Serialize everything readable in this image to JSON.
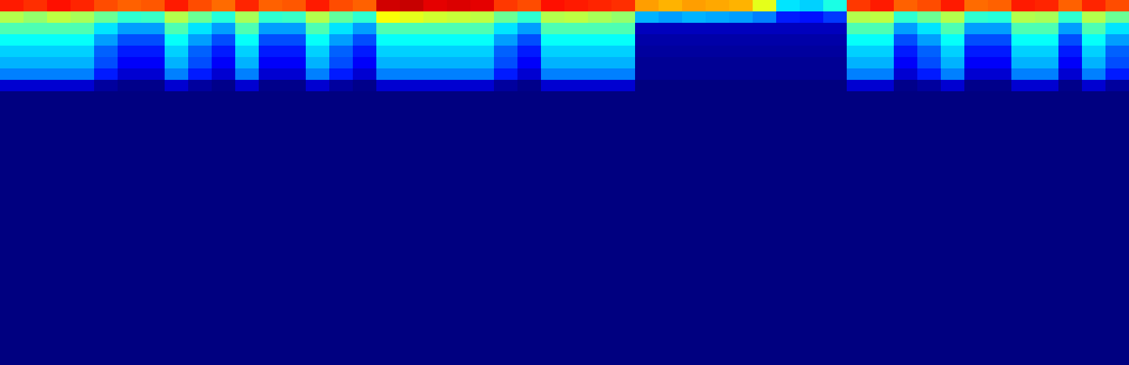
{
  "chart_data": {
    "type": "heatmap",
    "tick_labels": false,
    "xlim": [
      0,
      48
    ],
    "ylim": [
      0,
      32
    ],
    "color_range": [
      0,
      1
    ],
    "values": [
      [
        0.85,
        0.83,
        0.86,
        0.84,
        0.8,
        0.78,
        0.79,
        0.85,
        0.8,
        0.77,
        0.84,
        0.78,
        0.79,
        0.85,
        0.8,
        0.78,
        0.92,
        0.93,
        0.9,
        0.91,
        0.9,
        0.82,
        0.8,
        0.86,
        0.85,
        0.84,
        0.83,
        0.72,
        0.7,
        0.72,
        0.71,
        0.7,
        0.6,
        0.35,
        0.33,
        0.4,
        0.82,
        0.85,
        0.78,
        0.8,
        0.85,
        0.77,
        0.78,
        0.85,
        0.84,
        0.78,
        0.84,
        0.8
      ],
      [
        0.55,
        0.52,
        0.56,
        0.54,
        0.48,
        0.42,
        0.43,
        0.55,
        0.48,
        0.41,
        0.54,
        0.42,
        0.43,
        0.55,
        0.47,
        0.42,
        0.62,
        0.6,
        0.58,
        0.57,
        0.56,
        0.48,
        0.42,
        0.55,
        0.56,
        0.54,
        0.52,
        0.3,
        0.28,
        0.3,
        0.29,
        0.28,
        0.25,
        0.15,
        0.14,
        0.18,
        0.55,
        0.56,
        0.42,
        0.48,
        0.55,
        0.42,
        0.41,
        0.55,
        0.54,
        0.42,
        0.55,
        0.48
      ],
      [
        0.45,
        0.45,
        0.45,
        0.45,
        0.35,
        0.28,
        0.28,
        0.45,
        0.35,
        0.28,
        0.45,
        0.28,
        0.28,
        0.45,
        0.35,
        0.28,
        0.45,
        0.45,
        0.45,
        0.45,
        0.45,
        0.35,
        0.28,
        0.45,
        0.45,
        0.45,
        0.45,
        0.06,
        0.06,
        0.06,
        0.06,
        0.06,
        0.06,
        0.06,
        0.06,
        0.06,
        0.45,
        0.45,
        0.28,
        0.35,
        0.45,
        0.28,
        0.28,
        0.45,
        0.45,
        0.28,
        0.45,
        0.35
      ],
      [
        0.38,
        0.38,
        0.38,
        0.38,
        0.28,
        0.2,
        0.2,
        0.38,
        0.28,
        0.2,
        0.38,
        0.2,
        0.2,
        0.38,
        0.28,
        0.2,
        0.38,
        0.38,
        0.38,
        0.38,
        0.38,
        0.28,
        0.2,
        0.38,
        0.38,
        0.38,
        0.38,
        0.04,
        0.04,
        0.04,
        0.04,
        0.04,
        0.04,
        0.04,
        0.04,
        0.04,
        0.38,
        0.38,
        0.2,
        0.28,
        0.38,
        0.2,
        0.2,
        0.38,
        0.38,
        0.2,
        0.38,
        0.28
      ],
      [
        0.33,
        0.33,
        0.33,
        0.33,
        0.22,
        0.15,
        0.15,
        0.33,
        0.22,
        0.15,
        0.33,
        0.15,
        0.15,
        0.33,
        0.22,
        0.15,
        0.33,
        0.33,
        0.33,
        0.33,
        0.33,
        0.22,
        0.15,
        0.33,
        0.33,
        0.33,
        0.33,
        0.03,
        0.03,
        0.03,
        0.03,
        0.03,
        0.03,
        0.03,
        0.03,
        0.03,
        0.33,
        0.33,
        0.15,
        0.22,
        0.33,
        0.15,
        0.15,
        0.33,
        0.33,
        0.15,
        0.33,
        0.22
      ],
      [
        0.3,
        0.3,
        0.3,
        0.3,
        0.2,
        0.12,
        0.12,
        0.3,
        0.2,
        0.12,
        0.3,
        0.12,
        0.12,
        0.3,
        0.2,
        0.12,
        0.3,
        0.3,
        0.3,
        0.3,
        0.3,
        0.2,
        0.12,
        0.3,
        0.3,
        0.3,
        0.3,
        0.02,
        0.02,
        0.02,
        0.02,
        0.02,
        0.02,
        0.02,
        0.02,
        0.02,
        0.3,
        0.3,
        0.12,
        0.2,
        0.3,
        0.12,
        0.12,
        0.3,
        0.3,
        0.12,
        0.3,
        0.2
      ],
      [
        0.25,
        0.25,
        0.25,
        0.25,
        0.15,
        0.08,
        0.08,
        0.25,
        0.15,
        0.08,
        0.25,
        0.08,
        0.08,
        0.25,
        0.15,
        0.08,
        0.25,
        0.25,
        0.25,
        0.25,
        0.25,
        0.15,
        0.08,
        0.25,
        0.25,
        0.25,
        0.25,
        0.02,
        0.02,
        0.02,
        0.02,
        0.02,
        0.02,
        0.02,
        0.02,
        0.02,
        0.25,
        0.25,
        0.08,
        0.15,
        0.25,
        0.08,
        0.08,
        0.25,
        0.25,
        0.08,
        0.25,
        0.15
      ],
      [
        0.08,
        0.08,
        0.08,
        0.08,
        0.03,
        0.01,
        0.01,
        0.08,
        0.03,
        0.01,
        0.08,
        0.01,
        0.01,
        0.08,
        0.03,
        0.01,
        0.08,
        0.08,
        0.08,
        0.08,
        0.08,
        0.03,
        0.01,
        0.08,
        0.08,
        0.08,
        0.08,
        0,
        0,
        0,
        0,
        0,
        0,
        0,
        0,
        0,
        0.08,
        0.08,
        0.01,
        0.03,
        0.08,
        0.01,
        0.01,
        0.08,
        0.08,
        0.01,
        0.08,
        0.03
      ],
      [
        0,
        0,
        0,
        0,
        0,
        0,
        0,
        0,
        0,
        0,
        0,
        0,
        0,
        0,
        0,
        0,
        0,
        0,
        0,
        0,
        0,
        0,
        0,
        0,
        0,
        0,
        0,
        0,
        0,
        0,
        0,
        0,
        0,
        0,
        0,
        0,
        0,
        0,
        0,
        0,
        0,
        0,
        0,
        0,
        0,
        0,
        0,
        0
      ],
      [
        0,
        0,
        0,
        0,
        0,
        0,
        0,
        0,
        0,
        0,
        0,
        0,
        0,
        0,
        0,
        0,
        0,
        0,
        0,
        0,
        0,
        0,
        0,
        0,
        0,
        0,
        0,
        0,
        0,
        0,
        0,
        0,
        0,
        0,
        0,
        0,
        0,
        0,
        0,
        0,
        0,
        0,
        0,
        0,
        0,
        0,
        0,
        0
      ],
      [
        0,
        0,
        0,
        0,
        0,
        0,
        0,
        0,
        0,
        0,
        0,
        0,
        0,
        0,
        0,
        0,
        0,
        0,
        0,
        0,
        0,
        0,
        0,
        0,
        0,
        0,
        0,
        0,
        0,
        0,
        0,
        0,
        0,
        0,
        0,
        0,
        0,
        0,
        0,
        0,
        0,
        0,
        0,
        0,
        0,
        0,
        0,
        0
      ],
      [
        0,
        0,
        0,
        0,
        0,
        0,
        0,
        0,
        0,
        0,
        0,
        0,
        0,
        0,
        0,
        0,
        0,
        0,
        0,
        0,
        0,
        0,
        0,
        0,
        0,
        0,
        0,
        0,
        0,
        0,
        0,
        0,
        0,
        0,
        0,
        0,
        0,
        0,
        0,
        0,
        0,
        0,
        0,
        0,
        0,
        0,
        0,
        0
      ],
      [
        0,
        0,
        0,
        0,
        0,
        0,
        0,
        0,
        0,
        0,
        0,
        0,
        0,
        0,
        0,
        0,
        0,
        0,
        0,
        0,
        0,
        0,
        0,
        0,
        0,
        0,
        0,
        0,
        0,
        0,
        0,
        0,
        0,
        0,
        0,
        0,
        0,
        0,
        0,
        0,
        0,
        0,
        0,
        0,
        0,
        0,
        0,
        0
      ],
      [
        0,
        0,
        0,
        0,
        0,
        0,
        0,
        0,
        0,
        0,
        0,
        0,
        0,
        0,
        0,
        0,
        0,
        0,
        0,
        0,
        0,
        0,
        0,
        0,
        0,
        0,
        0,
        0,
        0,
        0,
        0,
        0,
        0,
        0,
        0,
        0,
        0,
        0,
        0,
        0,
        0,
        0,
        0,
        0,
        0,
        0,
        0,
        0
      ],
      [
        0,
        0,
        0,
        0,
        0,
        0,
        0,
        0,
        0,
        0,
        0,
        0,
        0,
        0,
        0,
        0,
        0,
        0,
        0,
        0,
        0,
        0,
        0,
        0,
        0,
        0,
        0,
        0,
        0,
        0,
        0,
        0,
        0,
        0,
        0,
        0,
        0,
        0,
        0,
        0,
        0,
        0,
        0,
        0,
        0,
        0,
        0,
        0
      ],
      [
        0,
        0,
        0,
        0,
        0,
        0,
        0,
        0,
        0,
        0,
        0,
        0,
        0,
        0,
        0,
        0,
        0,
        0,
        0,
        0,
        0,
        0,
        0,
        0,
        0,
        0,
        0,
        0,
        0,
        0,
        0,
        0,
        0,
        0,
        0,
        0,
        0,
        0,
        0,
        0,
        0,
        0,
        0,
        0,
        0,
        0,
        0,
        0
      ],
      [
        0,
        0,
        0,
        0,
        0,
        0,
        0,
        0,
        0,
        0,
        0,
        0,
        0,
        0,
        0,
        0,
        0,
        0,
        0,
        0,
        0,
        0,
        0,
        0,
        0,
        0,
        0,
        0,
        0,
        0,
        0,
        0,
        0,
        0,
        0,
        0,
        0,
        0,
        0,
        0,
        0,
        0,
        0,
        0,
        0,
        0,
        0,
        0
      ],
      [
        0,
        0,
        0,
        0,
        0,
        0,
        0,
        0,
        0,
        0,
        0,
        0,
        0,
        0,
        0,
        0,
        0,
        0,
        0,
        0,
        0,
        0,
        0,
        0,
        0,
        0,
        0,
        0,
        0,
        0,
        0,
        0,
        0,
        0,
        0,
        0,
        0,
        0,
        0,
        0,
        0,
        0,
        0,
        0,
        0,
        0,
        0,
        0
      ],
      [
        0,
        0,
        0,
        0,
        0,
        0,
        0,
        0,
        0,
        0,
        0,
        0,
        0,
        0,
        0,
        0,
        0,
        0,
        0,
        0,
        0,
        0,
        0,
        0,
        0,
        0,
        0,
        0,
        0,
        0,
        0,
        0,
        0,
        0,
        0,
        0,
        0,
        0,
        0,
        0,
        0,
        0,
        0,
        0,
        0,
        0,
        0,
        0
      ],
      [
        0,
        0,
        0,
        0,
        0,
        0,
        0,
        0,
        0,
        0,
        0,
        0,
        0,
        0,
        0,
        0,
        0,
        0,
        0,
        0,
        0,
        0,
        0,
        0,
        0,
        0,
        0,
        0,
        0,
        0,
        0,
        0,
        0,
        0,
        0,
        0,
        0,
        0,
        0,
        0,
        0,
        0,
        0,
        0,
        0,
        0,
        0,
        0
      ],
      [
        0,
        0,
        0,
        0,
        0,
        0,
        0,
        0,
        0,
        0,
        0,
        0,
        0,
        0,
        0,
        0,
        0,
        0,
        0,
        0,
        0,
        0,
        0,
        0,
        0,
        0,
        0,
        0,
        0,
        0,
        0,
        0,
        0,
        0,
        0,
        0,
        0,
        0,
        0,
        0,
        0,
        0,
        0,
        0,
        0,
        0,
        0,
        0
      ],
      [
        0,
        0,
        0,
        0,
        0,
        0,
        0,
        0,
        0,
        0,
        0,
        0,
        0,
        0,
        0,
        0,
        0,
        0,
        0,
        0,
        0,
        0,
        0,
        0,
        0,
        0,
        0,
        0,
        0,
        0,
        0,
        0,
        0,
        0,
        0,
        0,
        0,
        0,
        0,
        0,
        0,
        0,
        0,
        0,
        0,
        0,
        0,
        0
      ],
      [
        0,
        0,
        0,
        0,
        0,
        0,
        0,
        0,
        0,
        0,
        0,
        0,
        0,
        0,
        0,
        0,
        0,
        0,
        0,
        0,
        0,
        0,
        0,
        0,
        0,
        0,
        0,
        0,
        0,
        0,
        0,
        0,
        0,
        0,
        0,
        0,
        0,
        0,
        0,
        0,
        0,
        0,
        0,
        0,
        0,
        0,
        0,
        0
      ],
      [
        0,
        0,
        0,
        0,
        0,
        0,
        0,
        0,
        0,
        0,
        0,
        0,
        0,
        0,
        0,
        0,
        0,
        0,
        0,
        0,
        0,
        0,
        0,
        0,
        0,
        0,
        0,
        0,
        0,
        0,
        0,
        0,
        0,
        0,
        0,
        0,
        0,
        0,
        0,
        0,
        0,
        0,
        0,
        0,
        0,
        0,
        0,
        0
      ],
      [
        0,
        0,
        0,
        0,
        0,
        0,
        0,
        0,
        0,
        0,
        0,
        0,
        0,
        0,
        0,
        0,
        0,
        0,
        0,
        0,
        0,
        0,
        0,
        0,
        0,
        0,
        0,
        0,
        0,
        0,
        0,
        0,
        0,
        0,
        0,
        0,
        0,
        0,
        0,
        0,
        0,
        0,
        0,
        0,
        0,
        0,
        0,
        0
      ],
      [
        0,
        0,
        0,
        0,
        0,
        0,
        0,
        0,
        0,
        0,
        0,
        0,
        0,
        0,
        0,
        0,
        0,
        0,
        0,
        0,
        0,
        0,
        0,
        0,
        0,
        0,
        0,
        0,
        0,
        0,
        0,
        0,
        0,
        0,
        0,
        0,
        0,
        0,
        0,
        0,
        0,
        0,
        0,
        0,
        0,
        0,
        0,
        0
      ],
      [
        0,
        0,
        0,
        0,
        0,
        0,
        0,
        0,
        0,
        0,
        0,
        0,
        0,
        0,
        0,
        0,
        0,
        0,
        0,
        0,
        0,
        0,
        0,
        0,
        0,
        0,
        0,
        0,
        0,
        0,
        0,
        0,
        0,
        0,
        0,
        0,
        0,
        0,
        0,
        0,
        0,
        0,
        0,
        0,
        0,
        0,
        0,
        0
      ],
      [
        0,
        0,
        0,
        0,
        0,
        0,
        0,
        0,
        0,
        0,
        0,
        0,
        0,
        0,
        0,
        0,
        0,
        0,
        0,
        0,
        0,
        0,
        0,
        0,
        0,
        0,
        0,
        0,
        0,
        0,
        0,
        0,
        0,
        0,
        0,
        0,
        0,
        0,
        0,
        0,
        0,
        0,
        0,
        0,
        0,
        0,
        0,
        0
      ],
      [
        0,
        0,
        0,
        0,
        0,
        0,
        0,
        0,
        0,
        0,
        0,
        0,
        0,
        0,
        0,
        0,
        0,
        0,
        0,
        0,
        0,
        0,
        0,
        0,
        0,
        0,
        0,
        0,
        0,
        0,
        0,
        0,
        0,
        0,
        0,
        0,
        0,
        0,
        0,
        0,
        0,
        0,
        0,
        0,
        0,
        0,
        0,
        0
      ],
      [
        0,
        0,
        0,
        0,
        0,
        0,
        0,
        0,
        0,
        0,
        0,
        0,
        0,
        0,
        0,
        0,
        0,
        0,
        0,
        0,
        0,
        0,
        0,
        0,
        0,
        0,
        0,
        0,
        0,
        0,
        0,
        0,
        0,
        0,
        0,
        0,
        0,
        0,
        0,
        0,
        0,
        0,
        0,
        0,
        0,
        0,
        0,
        0
      ],
      [
        0,
        0,
        0,
        0,
        0,
        0,
        0,
        0,
        0,
        0,
        0,
        0,
        0,
        0,
        0,
        0,
        0,
        0,
        0,
        0,
        0,
        0,
        0,
        0,
        0,
        0,
        0,
        0,
        0,
        0,
        0,
        0,
        0,
        0,
        0,
        0,
        0,
        0,
        0,
        0,
        0,
        0,
        0,
        0,
        0,
        0,
        0,
        0
      ],
      [
        0,
        0,
        0,
        0,
        0,
        0,
        0,
        0,
        0,
        0,
        0,
        0,
        0,
        0,
        0,
        0,
        0,
        0,
        0,
        0,
        0,
        0,
        0,
        0,
        0,
        0,
        0,
        0,
        0,
        0,
        0,
        0,
        0,
        0,
        0,
        0,
        0,
        0,
        0,
        0,
        0,
        0,
        0,
        0,
        0,
        0,
        0,
        0
      ]
    ]
  }
}
